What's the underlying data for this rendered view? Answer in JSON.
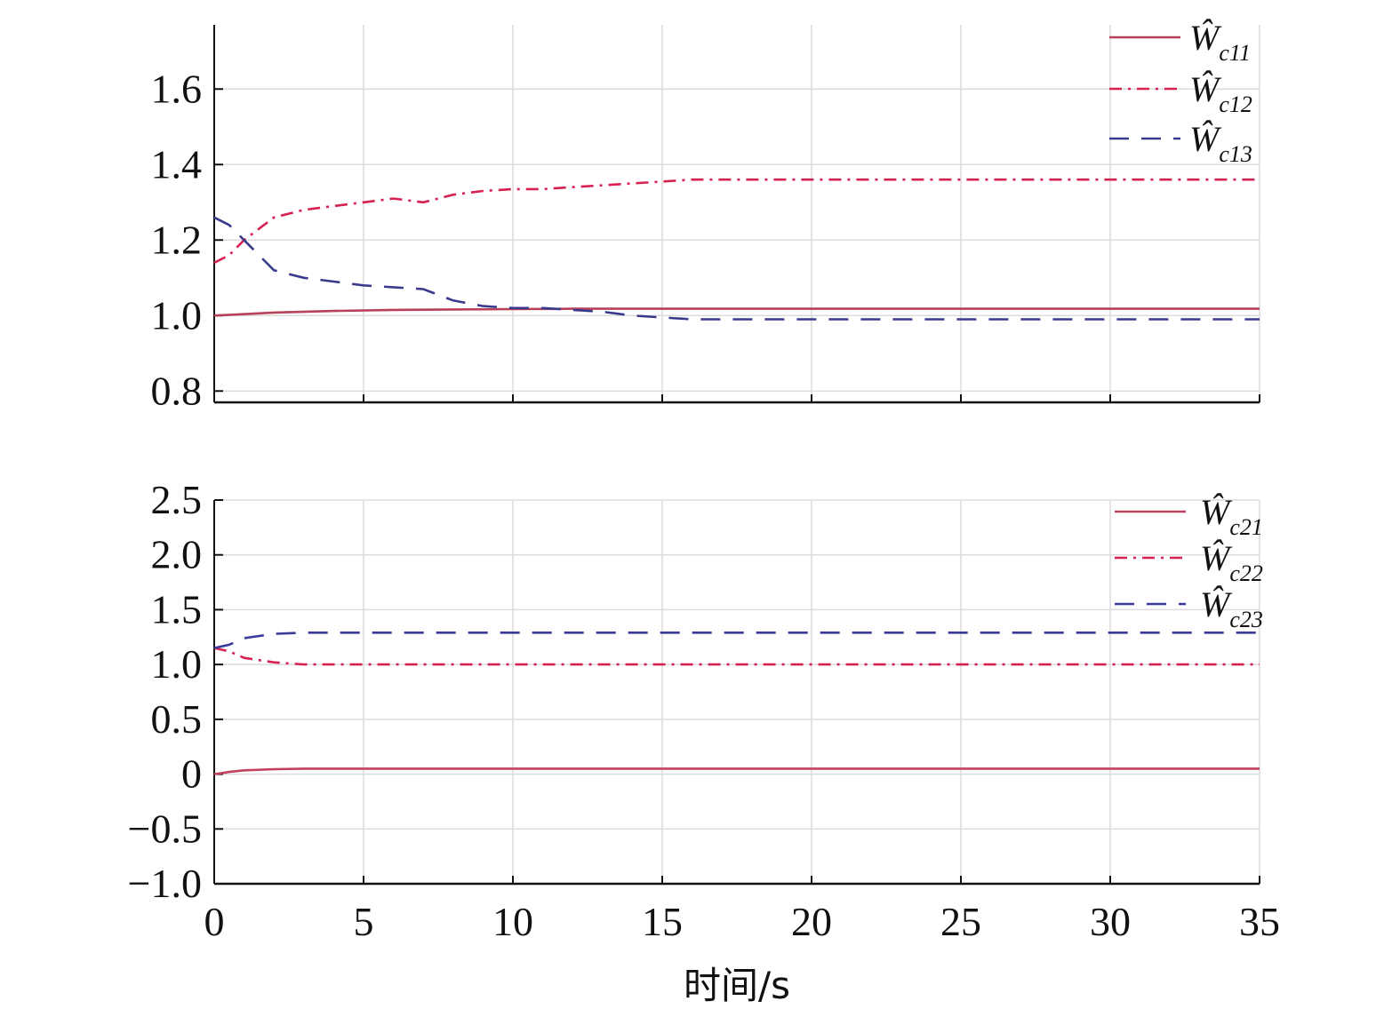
{
  "chart_data": [
    {
      "type": "line",
      "xlabel": "",
      "ylabel": "",
      "xlim": [
        0,
        35
      ],
      "ylim": [
        0.77,
        1.77
      ],
      "x_ticks": [
        0,
        5,
        10,
        15,
        20,
        25,
        30,
        35
      ],
      "y_ticks": [
        0.8,
        1.0,
        1.2,
        1.4,
        1.6
      ],
      "y_tick_labels": [
        "0.8",
        "1.0",
        "1.2",
        "1.4",
        "1.6"
      ],
      "grid": true,
      "legend_position": "top-right",
      "series": [
        {
          "name": "Ŵc11",
          "style": "solid",
          "color": "#b8405a",
          "x": [
            0,
            2,
            4,
            6,
            8,
            10,
            12,
            14,
            16,
            20,
            25,
            30,
            35
          ],
          "y": [
            1.0,
            1.008,
            1.012,
            1.015,
            1.016,
            1.017,
            1.018,
            1.018,
            1.018,
            1.018,
            1.018,
            1.018,
            1.018
          ]
        },
        {
          "name": "Ŵc12",
          "style": "dashdot",
          "color": "#d6204f",
          "x": [
            0,
            0.5,
            1,
            2,
            3,
            4,
            5,
            6,
            7,
            8,
            9,
            10,
            11,
            12,
            13,
            14,
            15,
            16,
            17,
            20,
            25,
            30,
            35
          ],
          "y": [
            1.14,
            1.16,
            1.2,
            1.26,
            1.28,
            1.29,
            1.3,
            1.31,
            1.3,
            1.32,
            1.33,
            1.335,
            1.335,
            1.34,
            1.345,
            1.35,
            1.355,
            1.36,
            1.36,
            1.36,
            1.36,
            1.36,
            1.36
          ]
        },
        {
          "name": "Ŵc13",
          "style": "dashed",
          "color": "#3a3a8c",
          "x": [
            0,
            0.5,
            1,
            2,
            3,
            4,
            5,
            6,
            7,
            8,
            9,
            10,
            11,
            12,
            13,
            14,
            15,
            16,
            17,
            20,
            25,
            30,
            35
          ],
          "y": [
            1.26,
            1.24,
            1.2,
            1.12,
            1.1,
            1.09,
            1.08,
            1.075,
            1.07,
            1.04,
            1.025,
            1.02,
            1.02,
            1.015,
            1.01,
            1.0,
            0.995,
            0.99,
            0.99,
            0.99,
            0.99,
            0.99,
            0.99
          ]
        }
      ]
    },
    {
      "type": "line",
      "xlabel": "时间/s",
      "ylabel": "",
      "xlim": [
        0,
        35
      ],
      "ylim": [
        -1.0,
        2.5
      ],
      "x_ticks": [
        0,
        5,
        10,
        15,
        20,
        25,
        30,
        35
      ],
      "y_ticks": [
        -1.0,
        -0.5,
        0,
        0.5,
        1.0,
        1.5,
        2.0,
        2.5
      ],
      "y_tick_labels": [
        "−1.0",
        "−0.5",
        "0",
        "0.5",
        "1.0",
        "1.5",
        "2.0",
        "2.5"
      ],
      "grid": true,
      "legend_position": "top-right",
      "series": [
        {
          "name": "Ŵc21",
          "style": "solid",
          "color": "#c0405e",
          "x": [
            0,
            0.5,
            1,
            2,
            3,
            5,
            10,
            20,
            35
          ],
          "y": [
            0.0,
            0.02,
            0.035,
            0.045,
            0.05,
            0.05,
            0.05,
            0.05,
            0.05
          ]
        },
        {
          "name": "Ŵc22",
          "style": "dashdot",
          "color": "#d6204f",
          "x": [
            0,
            0.5,
            1,
            2,
            3,
            5,
            10,
            20,
            35
          ],
          "y": [
            1.15,
            1.12,
            1.06,
            1.02,
            1.0,
            1.0,
            1.0,
            1.0,
            1.0
          ]
        },
        {
          "name": "Ŵc23",
          "style": "dashed",
          "color": "#3a3a9a",
          "x": [
            0,
            0.5,
            1,
            2,
            3,
            5,
            10,
            20,
            35
          ],
          "y": [
            1.15,
            1.18,
            1.24,
            1.28,
            1.29,
            1.29,
            1.29,
            1.29,
            1.29
          ]
        }
      ]
    }
  ],
  "x_tick_labels": [
    "0",
    "5",
    "10",
    "15",
    "20",
    "25",
    "30",
    "35"
  ],
  "legend_top": {
    "items": [
      {
        "base": "Ŵ",
        "sub": "c11"
      },
      {
        "base": "Ŵ",
        "sub": "c12"
      },
      {
        "base": "Ŵ",
        "sub": "c13"
      }
    ]
  },
  "legend_bottom": {
    "items": [
      {
        "base": "Ŵ",
        "sub": "c21"
      },
      {
        "base": "Ŵ",
        "sub": "c22"
      },
      {
        "base": "Ŵ",
        "sub": "c23"
      }
    ]
  }
}
